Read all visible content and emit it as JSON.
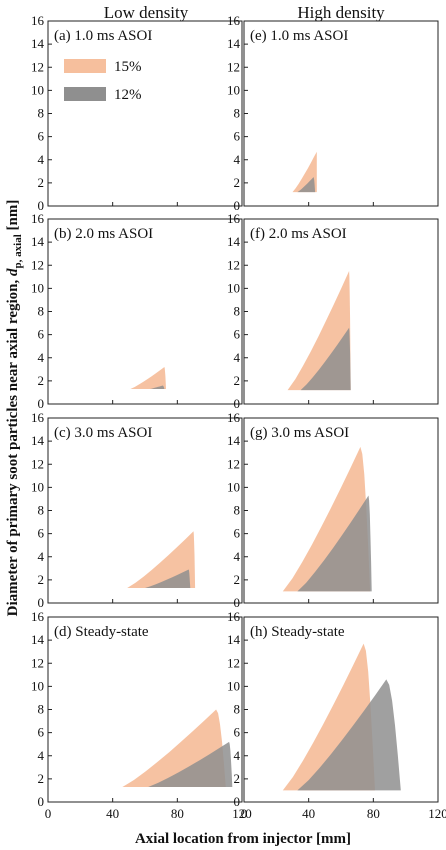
{
  "figure": {
    "col_titles": [
      "Low density",
      "High density"
    ],
    "ylabel_main": "Diameter of primary soot particles near axial region, ",
    "ylabel_var": "d",
    "ylabel_sub": "p, axial",
    "ylabel_unit": " [nm]",
    "xlabel": "Axial location from injector [mm]",
    "legend": [
      {
        "label": "15%",
        "color": "#f6bf9d"
      },
      {
        "label": "12%",
        "color": "#8f8f8f"
      }
    ]
  },
  "chart_data": [
    {
      "type": "area",
      "title": "(a) 1.0 ms ASOI",
      "xlim": [
        0,
        120
      ],
      "ylim": [
        0,
        16
      ],
      "xticks": [
        0,
        40,
        80,
        120
      ],
      "yticks": [
        0,
        2,
        4,
        6,
        8,
        10,
        12,
        14,
        16
      ],
      "grid": false,
      "series": []
    },
    {
      "type": "area",
      "title": "(b) 2.0 ms ASOI",
      "xlim": [
        0,
        120
      ],
      "ylim": [
        0,
        16
      ],
      "xticks": [
        0,
        40,
        80,
        120
      ],
      "yticks": [
        0,
        2,
        4,
        6,
        8,
        10,
        12,
        14,
        16
      ],
      "grid": false,
      "series": [
        {
          "name": "15%",
          "x_start": 51,
          "y_start": 1.3,
          "x_peak": 72,
          "y_peak": 3.2,
          "x_end": 73
        },
        {
          "name": "12%",
          "x_start": 63,
          "y_start": 1.3,
          "x_peak": 71,
          "y_peak": 1.6,
          "x_end": 72
        }
      ]
    },
    {
      "type": "area",
      "title": "(c) 3.0 ms ASOI",
      "xlim": [
        0,
        120
      ],
      "ylim": [
        0,
        16
      ],
      "xticks": [
        0,
        40,
        80,
        120
      ],
      "yticks": [
        0,
        2,
        4,
        6,
        8,
        10,
        12,
        14,
        16
      ],
      "grid": false,
      "series": [
        {
          "name": "15%",
          "x_start": 49,
          "y_start": 1.3,
          "x_peak": 90,
          "y_peak": 6.2,
          "x_end": 91
        },
        {
          "name": "12%",
          "x_start": 60,
          "y_start": 1.3,
          "x_peak": 87,
          "y_peak": 2.9,
          "x_end": 88
        }
      ]
    },
    {
      "type": "area",
      "title": "(d) Steady-state",
      "xlim": [
        0,
        120
      ],
      "ylim": [
        0,
        16
      ],
      "xticks": [
        0,
        40,
        80,
        120
      ],
      "yticks": [
        0,
        2,
        4,
        6,
        8,
        10,
        12,
        14,
        16
      ],
      "grid": false,
      "series": [
        {
          "name": "15%",
          "x_start": 46,
          "y_start": 1.3,
          "x_peak": 104,
          "y_peak": 8.0,
          "x_end": 110
        },
        {
          "name": "12%",
          "x_start": 62,
          "y_start": 1.3,
          "x_peak": 112,
          "y_peak": 5.2,
          "x_end": 114
        }
      ]
    },
    {
      "type": "area",
      "title": "(e) 1.0 ms ASOI",
      "xlim": [
        0,
        120
      ],
      "ylim": [
        0,
        16
      ],
      "xticks": [
        0,
        40,
        80,
        120
      ],
      "yticks": [
        0,
        2,
        4,
        6,
        8,
        10,
        12,
        14,
        16
      ],
      "grid": false,
      "series": [
        {
          "name": "15%",
          "x_start": 30,
          "y_start": 1.2,
          "x_peak": 45,
          "y_peak": 4.7,
          "x_end": 45
        },
        {
          "name": "12%",
          "x_start": 33,
          "y_start": 1.2,
          "x_peak": 43,
          "y_peak": 2.5,
          "x_end": 44
        }
      ]
    },
    {
      "type": "area",
      "title": "(f) 2.0 ms ASOI",
      "xlim": [
        0,
        120
      ],
      "ylim": [
        0,
        16
      ],
      "xticks": [
        0,
        40,
        80,
        120
      ],
      "yticks": [
        0,
        2,
        4,
        6,
        8,
        10,
        12,
        14,
        16
      ],
      "grid": false,
      "series": [
        {
          "name": "15%",
          "x_start": 27,
          "y_start": 1.2,
          "x_peak": 65,
          "y_peak": 11.5,
          "x_end": 66
        },
        {
          "name": "12%",
          "x_start": 35,
          "y_start": 1.2,
          "x_peak": 65,
          "y_peak": 6.6,
          "x_end": 66
        }
      ]
    },
    {
      "type": "area",
      "title": "(g) 3.0 ms ASOI",
      "xlim": [
        0,
        120
      ],
      "ylim": [
        0,
        16
      ],
      "xticks": [
        0,
        40,
        80,
        120
      ],
      "yticks": [
        0,
        2,
        4,
        6,
        8,
        10,
        12,
        14,
        16
      ],
      "grid": false,
      "series": [
        {
          "name": "15%",
          "x_start": 24,
          "y_start": 1.0,
          "x_peak": 72,
          "y_peak": 13.5,
          "x_end": 78
        },
        {
          "name": "12%",
          "x_start": 33,
          "y_start": 1.0,
          "x_peak": 77,
          "y_peak": 9.3,
          "x_end": 79
        }
      ]
    },
    {
      "type": "area",
      "title": "(h) Steady-state",
      "xlim": [
        0,
        120
      ],
      "ylim": [
        0,
        16
      ],
      "xticks": [
        0,
        40,
        80,
        120
      ],
      "yticks": [
        0,
        2,
        4,
        6,
        8,
        10,
        12,
        14,
        16
      ],
      "grid": false,
      "series": [
        {
          "name": "15%",
          "x_start": 24,
          "y_start": 1.0,
          "x_peak": 74,
          "y_peak": 13.7,
          "x_end": 81
        },
        {
          "name": "12%",
          "x_start": 33,
          "y_start": 1.0,
          "x_peak": 88,
          "y_peak": 10.6,
          "x_end": 97
        }
      ]
    }
  ]
}
